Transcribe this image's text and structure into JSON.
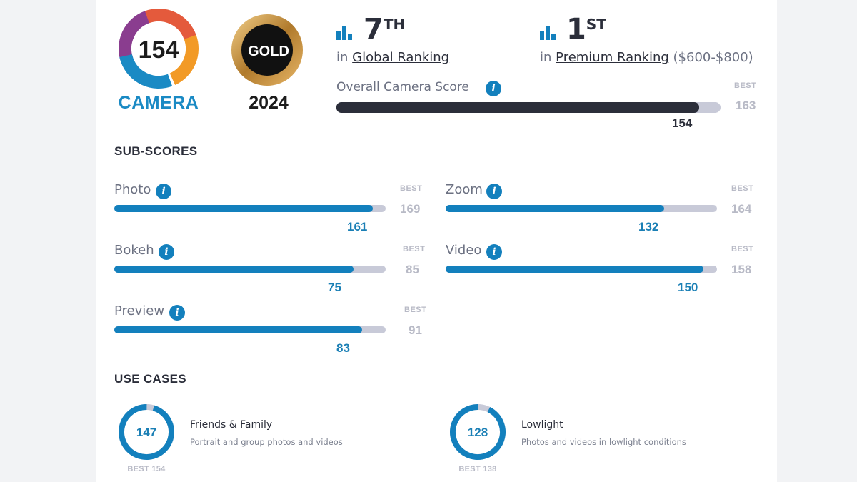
{
  "badge": {
    "score": "154",
    "label": "CAMERA",
    "award": "GOLD",
    "year": "2024"
  },
  "rankings": {
    "global": {
      "position": "7",
      "suffix": "TH",
      "prefix": "in",
      "link": "Global Ranking"
    },
    "premium": {
      "position": "1",
      "suffix": "ST",
      "prefix": "in",
      "link": "Premium Ranking",
      "range": "($600-$800)"
    }
  },
  "overall": {
    "title": "Overall Camera Score",
    "best_label": "BEST",
    "best": 163,
    "score": 154
  },
  "subscores": {
    "title": "SUB-SCORES",
    "items": [
      {
        "name": "Photo",
        "score": 161,
        "best": 169,
        "best_label": "BEST"
      },
      {
        "name": "Bokeh",
        "score": 75,
        "best": 85,
        "best_label": "BEST"
      },
      {
        "name": "Preview",
        "score": 83,
        "best": 91,
        "best_label": "BEST"
      },
      {
        "name": "Zoom",
        "score": 132,
        "best": 164,
        "best_label": "BEST"
      },
      {
        "name": "Video",
        "score": 150,
        "best": 158,
        "best_label": "BEST"
      }
    ]
  },
  "use_cases": {
    "title": "USE CASES",
    "items": [
      {
        "name": "Friends & Family",
        "description": "Portrait and group photos and videos",
        "score": 147,
        "best": 154,
        "best_label": "BEST 154"
      },
      {
        "name": "Lowlight",
        "description": "Photos and videos in lowlight conditions",
        "score": 128,
        "best": 138,
        "best_label": "BEST 138"
      }
    ]
  },
  "colors": {
    "accent": "#1380bd",
    "dark": "#2b2e3a",
    "track": "#c8cad8",
    "muted": "#b8bac6"
  }
}
